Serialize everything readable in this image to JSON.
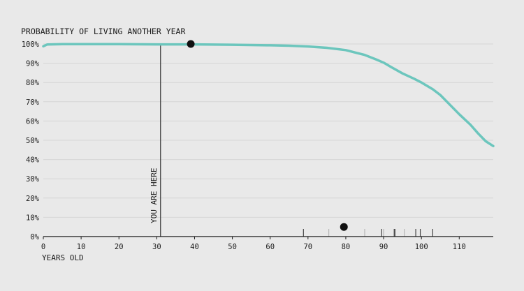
{
  "chart_data": {
    "type": "line",
    "title": "PROBABILITY OF LIVING ANOTHER YEAR",
    "xlabel": "YEARS OLD",
    "ylabel": "",
    "xlim": [
      0,
      119
    ],
    "ylim": [
      0,
      100
    ],
    "x_ticks": [
      0,
      10,
      20,
      30,
      40,
      50,
      60,
      70,
      80,
      90,
      100,
      110
    ],
    "y_ticks": [
      0,
      10,
      20,
      30,
      40,
      50,
      60,
      70,
      80,
      90,
      100
    ],
    "y_tick_labels": [
      "0%",
      "10%",
      "20%",
      "30%",
      "40%",
      "50%",
      "60%",
      "70%",
      "80%",
      "90%",
      "100%"
    ],
    "grid": "horizontal",
    "line_color": "#6cc6bd",
    "series": [
      {
        "x": [
          0,
          1,
          5,
          10,
          20,
          30,
          40,
          50,
          60,
          65,
          70,
          75,
          80,
          85,
          88,
          90,
          92,
          95,
          98,
          100,
          103,
          105,
          108,
          110,
          113,
          115,
          117,
          119
        ],
        "values": [
          98.8,
          99.7,
          99.9,
          99.9,
          99.9,
          99.8,
          99.8,
          99.6,
          99.3,
          99.1,
          98.7,
          98.0,
          96.8,
          94.3,
          92.0,
          90.3,
          88.0,
          84.7,
          82.0,
          80.0,
          76.5,
          73.5,
          67.5,
          63.5,
          58.0,
          53.5,
          49.5,
          47.0
        ]
      }
    ],
    "marker_you": {
      "label": "YOU ARE HERE",
      "x": 31
    },
    "marker_points": [
      {
        "x": 39,
        "y": 100
      },
      {
        "x": 79.5,
        "y": 5
      }
    ],
    "rug_ticks": [
      {
        "x": 68.8,
        "shade": "dark"
      },
      {
        "x": 75.5,
        "shade": "light"
      },
      {
        "x": 85,
        "shade": "light"
      },
      {
        "x": 89.5,
        "shade": "dark"
      },
      {
        "x": 90,
        "shade": "light"
      },
      {
        "x": 92.8,
        "shade": "dark"
      },
      {
        "x": 93,
        "shade": "dark"
      },
      {
        "x": 95.5,
        "shade": "light"
      },
      {
        "x": 98.5,
        "shade": "dark"
      },
      {
        "x": 99.7,
        "shade": "dark"
      },
      {
        "x": 103,
        "shade": "dark"
      }
    ]
  }
}
